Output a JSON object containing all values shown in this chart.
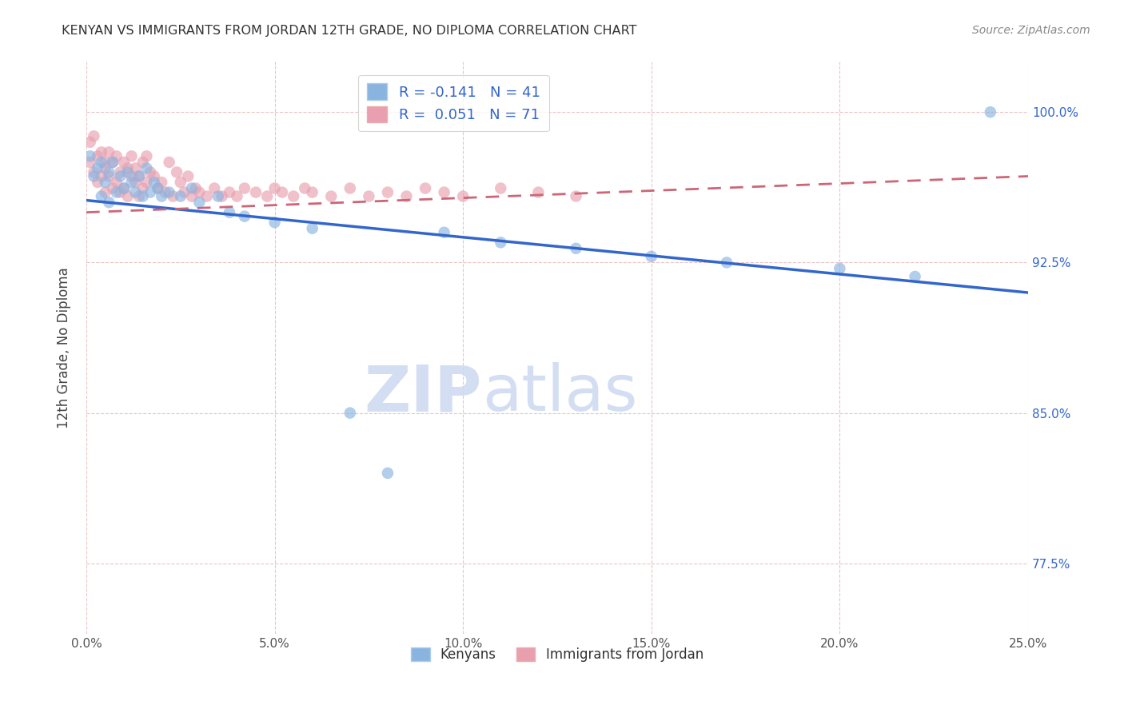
{
  "title": "KENYAN VS IMMIGRANTS FROM JORDAN 12TH GRADE, NO DIPLOMA CORRELATION CHART",
  "source": "Source: ZipAtlas.com",
  "ylabel": "12th Grade, No Diploma",
  "xmin": 0.0,
  "xmax": 0.25,
  "ymin": 0.74,
  "ymax": 1.025,
  "xticks": [
    0.0,
    0.05,
    0.1,
    0.15,
    0.2,
    0.25
  ],
  "xticklabels": [
    "0.0%",
    "5.0%",
    "10.0%",
    "15.0%",
    "20.0%",
    "25.0%"
  ],
  "yticks": [
    0.775,
    0.85,
    0.925,
    1.0
  ],
  "yticklabels": [
    "77.5%",
    "85.0%",
    "92.5%",
    "100.0%"
  ],
  "legend_labels": [
    "Kenyans",
    "Immigrants from Jordan"
  ],
  "R_kenyan": -0.141,
  "N_kenyan": 41,
  "R_jordan": 0.051,
  "N_jordan": 71,
  "blue_color": "#8ab4e0",
  "pink_color": "#e8a0b0",
  "blue_line_color": "#3366cc",
  "pink_line_color": "#cc6677",
  "watermark_color": "#ccd9f0",
  "blue_scatter_x": [
    0.001,
    0.002,
    0.003,
    0.004,
    0.004,
    0.005,
    0.006,
    0.006,
    0.007,
    0.008,
    0.009,
    0.01,
    0.011,
    0.012,
    0.013,
    0.014,
    0.015,
    0.016,
    0.017,
    0.018,
    0.019,
    0.02,
    0.022,
    0.025,
    0.028,
    0.03,
    0.035,
    0.038,
    0.042,
    0.05,
    0.06,
    0.07,
    0.08,
    0.095,
    0.11,
    0.13,
    0.15,
    0.17,
    0.2,
    0.22,
    0.24
  ],
  "blue_scatter_y": [
    0.978,
    0.968,
    0.972,
    0.975,
    0.958,
    0.965,
    0.97,
    0.955,
    0.975,
    0.96,
    0.968,
    0.962,
    0.97,
    0.965,
    0.96,
    0.968,
    0.958,
    0.972,
    0.96,
    0.965,
    0.962,
    0.958,
    0.96,
    0.958,
    0.962,
    0.955,
    0.958,
    0.95,
    0.948,
    0.945,
    0.942,
    0.85,
    0.82,
    0.94,
    0.935,
    0.932,
    0.928,
    0.925,
    0.922,
    0.918,
    1.0
  ],
  "pink_scatter_x": [
    0.001,
    0.001,
    0.002,
    0.002,
    0.003,
    0.003,
    0.004,
    0.004,
    0.005,
    0.005,
    0.005,
    0.006,
    0.006,
    0.007,
    0.007,
    0.008,
    0.008,
    0.009,
    0.009,
    0.01,
    0.01,
    0.011,
    0.011,
    0.012,
    0.012,
    0.013,
    0.013,
    0.014,
    0.014,
    0.015,
    0.015,
    0.016,
    0.016,
    0.017,
    0.018,
    0.019,
    0.02,
    0.021,
    0.022,
    0.023,
    0.024,
    0.025,
    0.026,
    0.027,
    0.028,
    0.029,
    0.03,
    0.032,
    0.034,
    0.036,
    0.038,
    0.04,
    0.042,
    0.045,
    0.048,
    0.05,
    0.052,
    0.055,
    0.058,
    0.06,
    0.065,
    0.07,
    0.075,
    0.08,
    0.085,
    0.09,
    0.095,
    0.1,
    0.11,
    0.12,
    0.13
  ],
  "pink_scatter_y": [
    0.985,
    0.975,
    0.988,
    0.97,
    0.978,
    0.965,
    0.98,
    0.968,
    0.975,
    0.972,
    0.96,
    0.98,
    0.968,
    0.975,
    0.962,
    0.978,
    0.965,
    0.97,
    0.96,
    0.975,
    0.962,
    0.972,
    0.958,
    0.968,
    0.978,
    0.965,
    0.972,
    0.968,
    0.958,
    0.975,
    0.962,
    0.978,
    0.965,
    0.97,
    0.968,
    0.962,
    0.965,
    0.96,
    0.975,
    0.958,
    0.97,
    0.965,
    0.96,
    0.968,
    0.958,
    0.962,
    0.96,
    0.958,
    0.962,
    0.958,
    0.96,
    0.958,
    0.962,
    0.96,
    0.958,
    0.962,
    0.96,
    0.958,
    0.962,
    0.96,
    0.958,
    0.962,
    0.958,
    0.96,
    0.958,
    0.962,
    0.96,
    0.958,
    0.962,
    0.96,
    0.958
  ]
}
